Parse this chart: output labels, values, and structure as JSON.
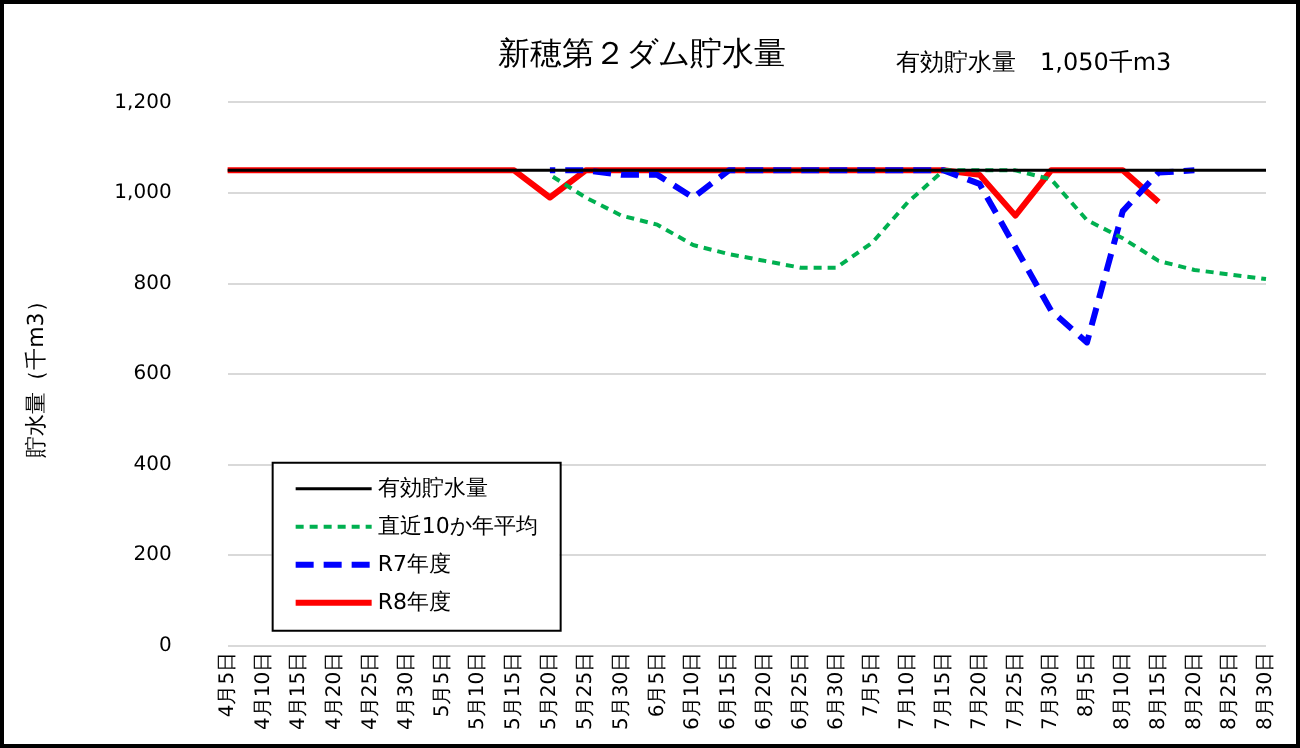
{
  "chart_data": {
    "type": "line",
    "title": "新穂第２ダム貯水量",
    "subtitle": "有効貯水量　1,050千m3",
    "ylabel": "貯水量（千m3）",
    "categories": [
      "4月5日",
      "4月10日",
      "4月15日",
      "4月20日",
      "4月25日",
      "4月30日",
      "5月5日",
      "5月10日",
      "5月15日",
      "5月20日",
      "5月25日",
      "5月30日",
      "6月5日",
      "6月10日",
      "6月15日",
      "6月20日",
      "6月25日",
      "6月30日",
      "7月5日",
      "7月10日",
      "7月15日",
      "7月20日",
      "7月25日",
      "7月30日",
      "8月5日",
      "8月10日",
      "8月15日",
      "8月20日",
      "8月25日",
      "8月30日"
    ],
    "series": [
      {
        "name": "有効貯水量",
        "color": "#000000",
        "line_style": "solid",
        "values": [
          1050,
          1050,
          1050,
          1050,
          1050,
          1050,
          1050,
          1050,
          1050,
          1050,
          1050,
          1050,
          1050,
          1050,
          1050,
          1050,
          1050,
          1050,
          1050,
          1050,
          1050,
          1050,
          1050,
          1050,
          1050,
          1050,
          1050,
          1050,
          1050,
          1050
        ]
      },
      {
        "name": "直近10か年平均",
        "color": "#00b050",
        "line_style": "dotted",
        "values": [
          null,
          null,
          null,
          null,
          null,
          null,
          null,
          null,
          null,
          1040,
          990,
          950,
          930,
          885,
          865,
          850,
          835,
          835,
          890,
          980,
          1050,
          1050,
          1050,
          1030,
          940,
          900,
          850,
          830,
          820,
          810
        ]
      },
      {
        "name": "R7年度",
        "color": "#0000ff",
        "line_style": "dashed",
        "values": [
          null,
          null,
          null,
          null,
          null,
          null,
          null,
          null,
          null,
          1050,
          1050,
          1040,
          1040,
          990,
          1050,
          1050,
          1050,
          1050,
          1050,
          1050,
          1050,
          1020,
          880,
          740,
          670,
          960,
          1045,
          1050,
          null,
          null
        ]
      },
      {
        "name": "R8年度",
        "color": "#ff0000",
        "line_style": "solid",
        "values": [
          1050,
          1050,
          1050,
          1050,
          1050,
          1050,
          1050,
          1050,
          1050,
          990,
          1050,
          1050,
          1050,
          1050,
          1050,
          1050,
          1050,
          1050,
          1050,
          1050,
          1050,
          1040,
          950,
          1050,
          1050,
          1050,
          980,
          null,
          null,
          null
        ]
      }
    ],
    "ylim": [
      0,
      1200
    ],
    "yticks": [
      0,
      200,
      400,
      600,
      800,
      {
        "value": 1000,
        "label": "1,000"
      },
      {
        "value": 1200,
        "label": "1,200"
      }
    ],
    "grid": "y",
    "legend": "bottom left",
    "marker": "none"
  }
}
